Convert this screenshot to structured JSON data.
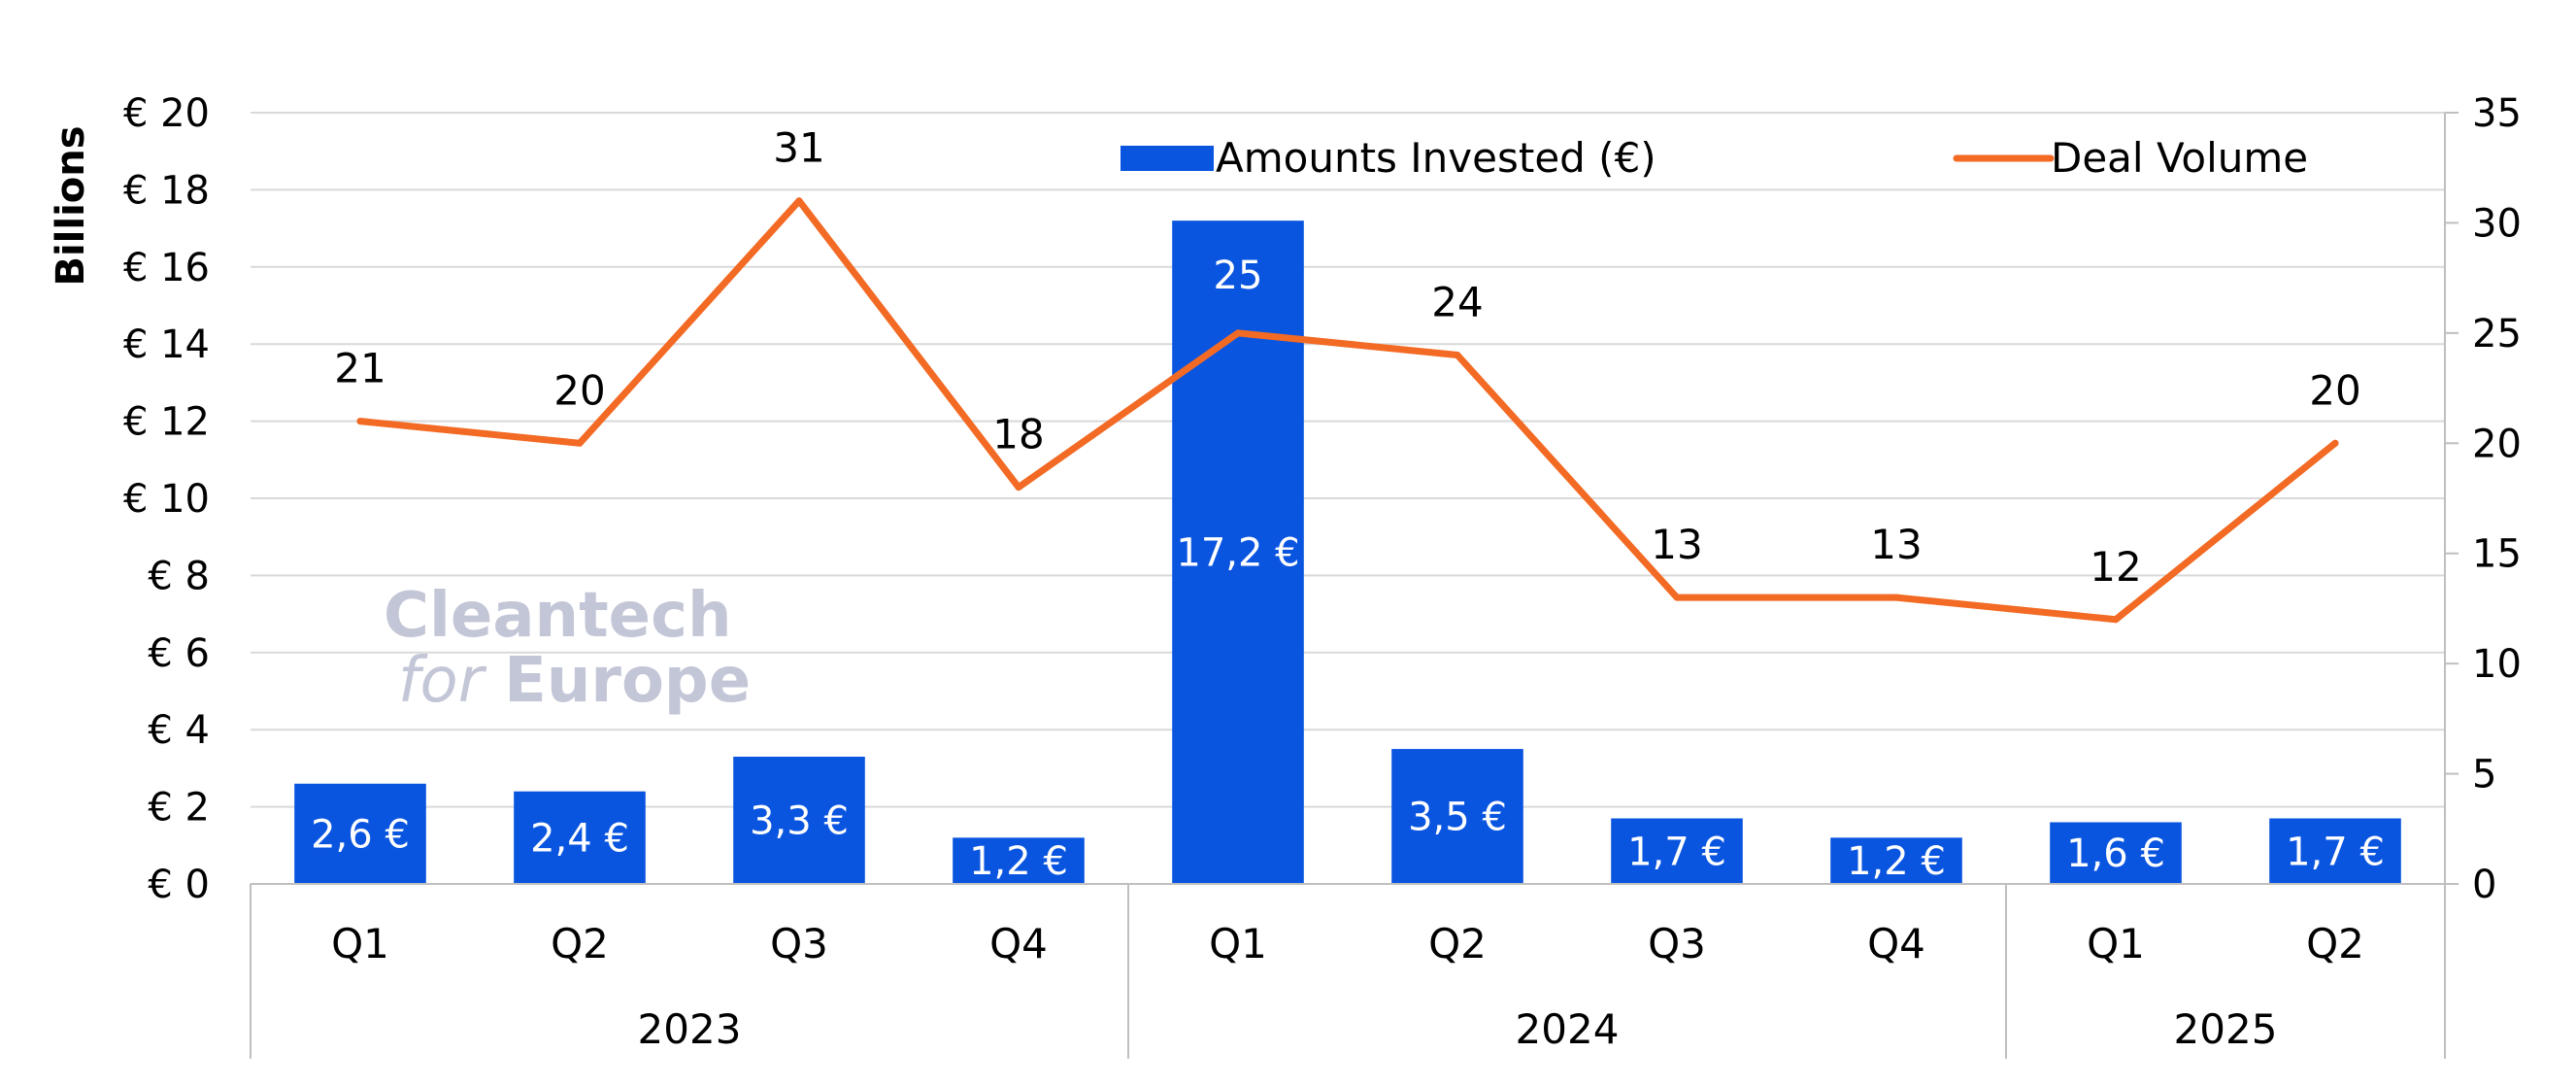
{
  "chart_data": {
    "type": "bar",
    "y_axis_title": "Billions",
    "y_left_ticks": [
      "€ 0",
      "€ 2",
      "€ 4",
      "€ 6",
      "€ 8",
      "€ 10",
      "€ 12",
      "€ 14",
      "€ 16",
      "€ 18",
      "€ 20"
    ],
    "y_right_ticks": [
      "0",
      "5",
      "10",
      "15",
      "20",
      "25",
      "30",
      "35"
    ],
    "ylim_left": [
      0,
      20
    ],
    "ylim_right": [
      0,
      35
    ],
    "categories": [
      "Q1",
      "Q2",
      "Q3",
      "Q4",
      "Q1",
      "Q2",
      "Q3",
      "Q4",
      "Q1",
      "Q2"
    ],
    "groups": [
      {
        "label": "2023",
        "count": 4
      },
      {
        "label": "2024",
        "count": 4
      },
      {
        "label": "2025",
        "count": 2
      }
    ],
    "series": [
      {
        "name": "Amounts Invested (€)",
        "type": "bar",
        "axis": "left",
        "color": "#0a55e0",
        "values": [
          2.6,
          2.4,
          3.3,
          1.2,
          17.2,
          3.5,
          1.7,
          1.2,
          1.6,
          1.7
        ],
        "labels": [
          "2,6 €",
          "2,4 €",
          "3,3 €",
          "1,2 €",
          "17,2 €",
          "3,5 €",
          "1,7 €",
          "1,2 €",
          "1,6 €",
          "1,7 €"
        ]
      },
      {
        "name": "Deal Volume",
        "type": "line",
        "axis": "right",
        "color": "#f26a24",
        "values": [
          21,
          20,
          31,
          18,
          25,
          24,
          13,
          13,
          12,
          20
        ],
        "labels": [
          "21",
          "20",
          "31",
          "18",
          "25",
          "24",
          "13",
          "13",
          "12",
          "20"
        ]
      }
    ],
    "legend_position": "top",
    "grid": true
  },
  "watermark": {
    "line1": "Cleantech",
    "line2_light": "for",
    "line2_bold": "Europe"
  }
}
